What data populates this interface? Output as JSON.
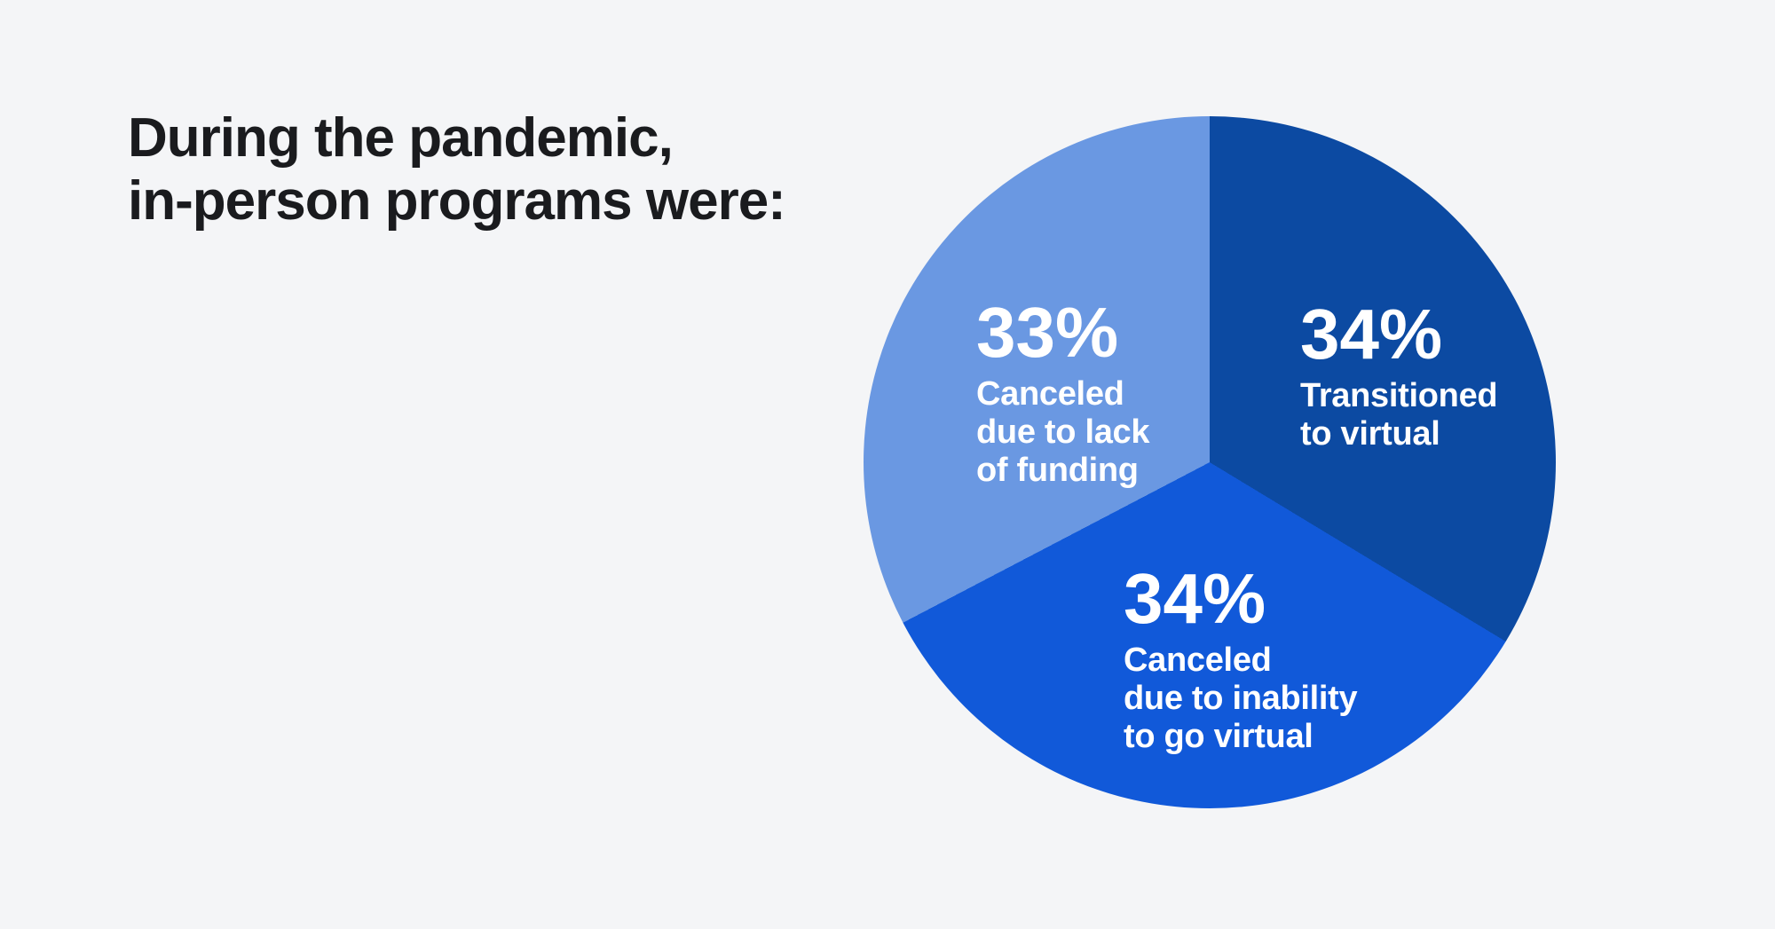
{
  "colors": {
    "background": "#F4F5F7",
    "title_text": "#1A1B1E",
    "slice_label_text": "#FFFFFF"
  },
  "header": {
    "title_lines": [
      "During the pandemic,",
      "in-person programs were:"
    ]
  },
  "chart_data": {
    "type": "pie",
    "title": "During the pandemic, in-person programs were:",
    "legend": "none",
    "labels_on_slices": true,
    "start_angle_deg": 0,
    "direction": "clockwise",
    "slices": [
      {
        "label": "Transitioned to virtual",
        "value": 34,
        "display_pct": "34%",
        "label_lines": [
          "Transitioned",
          "to virtual"
        ],
        "color": "#0C4AA2"
      },
      {
        "label": "Canceled due to inability to go virtual",
        "value": 34,
        "display_pct": "34%",
        "label_lines": [
          "Canceled",
          "due to inability",
          "to go virtual"
        ],
        "color": "#1159D9"
      },
      {
        "label": "Canceled due to lack of funding",
        "value": 33,
        "display_pct": "33%",
        "label_lines": [
          "Canceled",
          "due to lack",
          "of funding"
        ],
        "color": "#6A98E2"
      }
    ]
  }
}
